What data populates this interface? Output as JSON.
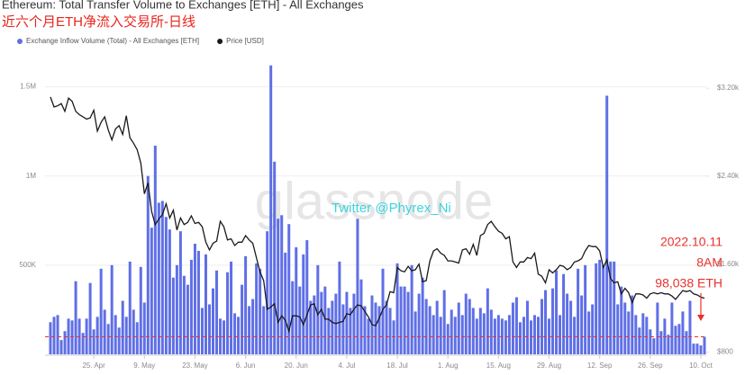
{
  "chart_data": {
    "type": "bar",
    "title": "Ethereum: Total Transfer Volume to Exchanges [ETH] - All Exchanges",
    "subtitle": "近六个月ETH净流入交易所-日线",
    "watermark": "glassnode",
    "credit": "Twitter @Phyrex_Ni",
    "annotations": [
      "2022.10.11",
      "8AM",
      "98,038 ETH"
    ],
    "reference_line": {
      "value": 98038,
      "color": "#e8322e"
    },
    "categories": [
      null,
      null,
      null,
      null,
      null,
      null,
      null,
      null,
      null,
      null,
      null,
      null,
      "25. Apr",
      null,
      null,
      null,
      null,
      null,
      null,
      null,
      null,
      null,
      null,
      null,
      null,
      null,
      "9. May",
      null,
      null,
      null,
      null,
      null,
      null,
      null,
      null,
      null,
      null,
      null,
      null,
      null,
      "23. May",
      null,
      null,
      null,
      null,
      null,
      null,
      null,
      null,
      null,
      null,
      null,
      null,
      null,
      "6. Jun",
      null,
      null,
      null,
      null,
      null,
      null,
      null,
      null,
      null,
      null,
      null,
      null,
      null,
      "20. Jun",
      null,
      null,
      null,
      null,
      null,
      null,
      null,
      null,
      null,
      null,
      null,
      null,
      null,
      "4. Jul",
      null,
      null,
      null,
      null,
      null,
      null,
      null,
      null,
      null,
      null,
      null,
      null,
      null,
      "18. Jul",
      null,
      null,
      null,
      null,
      null,
      null,
      null,
      null,
      null,
      null,
      null,
      null,
      null,
      "1. Aug",
      null,
      null,
      null,
      null,
      null,
      null,
      null,
      null,
      null,
      null,
      null,
      null,
      null,
      "15. Aug",
      null,
      null,
      null,
      null,
      null,
      null,
      null,
      null,
      null,
      null,
      null,
      null,
      null,
      "29. Aug",
      null,
      null,
      null,
      null,
      null,
      null,
      null,
      null,
      null,
      null,
      null,
      null,
      null,
      "12. Sep",
      null,
      null,
      null,
      null,
      null,
      null,
      null,
      null,
      null,
      null,
      null,
      null,
      null,
      "26. Sep",
      null,
      null,
      null,
      null,
      null,
      null,
      null,
      null,
      null,
      null,
      null,
      null,
      null,
      "10. Oct",
      null
    ],
    "series": [
      {
        "name": "Exchange Inflow Volume (Total) - All Exchanges [ETH]",
        "color": "#5f6fe6",
        "type": "bar",
        "values": [
          180000,
          210000,
          220000,
          80000,
          130000,
          200000,
          190000,
          410000,
          200000,
          120000,
          200000,
          400000,
          140000,
          210000,
          480000,
          250000,
          170000,
          500000,
          220000,
          150000,
          300000,
          210000,
          520000,
          250000,
          180000,
          490000,
          290000,
          1000000,
          710000,
          1170000,
          850000,
          860000,
          770000,
          700000,
          430000,
          500000,
          690000,
          440000,
          390000,
          530000,
          620000,
          580000,
          260000,
          560000,
          280000,
          370000,
          470000,
          200000,
          190000,
          460000,
          520000,
          230000,
          210000,
          390000,
          550000,
          270000,
          310000,
          510000,
          480000,
          270000,
          690000,
          1620000,
          1080000,
          760000,
          780000,
          570000,
          730000,
          410000,
          600000,
          380000,
          560000,
          640000,
          300000,
          330000,
          500000,
          350000,
          380000,
          260000,
          300000,
          340000,
          520000,
          280000,
          350000,
          260000,
          340000,
          760000,
          420000,
          270000,
          200000,
          330000,
          290000,
          270000,
          480000,
          300000,
          260000,
          190000,
          510000,
          380000,
          380000,
          350000,
          500000,
          240000,
          340000,
          430000,
          310000,
          270000,
          220000,
          300000,
          210000,
          360000,
          170000,
          250000,
          210000,
          290000,
          220000,
          340000,
          310000,
          260000,
          200000,
          260000,
          230000,
          370000,
          250000,
          200000,
          220000,
          200000,
          190000,
          220000,
          290000,
          320000,
          180000,
          210000,
          300000,
          190000,
          220000,
          210000,
          310000,
          360000,
          200000,
          370000,
          470000,
          220000,
          450000,
          340000,
          300000,
          210000,
          480000,
          330000,
          500000,
          240000,
          280000,
          510000,
          530000,
          500000,
          1450000,
          520000,
          520000,
          280000,
          380000,
          290000,
          240000,
          330000,
          220000,
          150000,
          230000,
          210000,
          140000,
          90000,
          290000,
          130000,
          200000,
          110000,
          290000,
          160000,
          170000,
          240000,
          130000,
          300000,
          60000,
          60000,
          50000,
          98038
        ]
      },
      {
        "name": "Price [USD]",
        "color": "#1a1a1a",
        "type": "line",
        "axis": "y2",
        "values": [
          3120,
          3030,
          3040,
          3060,
          2990,
          3110,
          3080,
          2990,
          2960,
          2940,
          2920,
          2930,
          3000,
          2810,
          2890,
          2940,
          2820,
          2730,
          2830,
          2860,
          2780,
          2950,
          2750,
          2700,
          2640,
          2520,
          2240,
          2340,
          2080,
          1960,
          2010,
          2050,
          2150,
          2020,
          2090,
          1910,
          2020,
          1960,
          1980,
          2040,
          1970,
          1980,
          1940,
          1800,
          1730,
          1790,
          1810,
          1990,
          1940,
          1820,
          1830,
          1770,
          1800,
          1800,
          1860,
          1820,
          1790,
          1660,
          1530,
          1450,
          1190,
          1210,
          1240,
          1070,
          1130,
          1090,
          990,
          1130,
          1130,
          1120,
          1050,
          1140,
          1230,
          1240,
          1140,
          1190,
          1100,
          1100,
          1070,
          1060,
          1070,
          1080,
          1150,
          1140,
          1190,
          1230,
          1220,
          1170,
          1120,
          1050,
          1040,
          1110,
          1190,
          1230,
          1350,
          1340,
          1570,
          1540,
          1530,
          1580,
          1540,
          1550,
          1600,
          1440,
          1450,
          1630,
          1720,
          1740,
          1700,
          1680,
          1630,
          1630,
          1620,
          1610,
          1730,
          1740,
          1690,
          1780,
          1680,
          1860,
          1880,
          1960,
          1990,
          1940,
          1900,
          1880,
          1830,
          1850,
          1620,
          1570,
          1620,
          1620,
          1660,
          1650,
          1700,
          1510,
          1490,
          1430,
          1550,
          1520,
          1550,
          1590,
          1580,
          1550,
          1570,
          1620,
          1630,
          1650,
          1720,
          1770,
          1760,
          1760,
          1720,
          1570,
          1640,
          1470,
          1430,
          1440,
          1330,
          1380,
          1340,
          1250,
          1330,
          1330,
          1320,
          1290,
          1330,
          1340,
          1330,
          1340,
          1330,
          1330,
          1310,
          1280,
          1320,
          1360,
          1350,
          1360,
          1330,
          1320,
          1300,
          1290
        ]
      }
    ],
    "ylim": [
      0,
      1800000
    ],
    "yticks": [
      {
        "value": 500000,
        "label": "500K"
      },
      {
        "value": 1000000,
        "label": "1M"
      },
      {
        "value": 1500000,
        "label": "1.5M"
      }
    ],
    "y2lim": [
      780,
      3700
    ],
    "y2ticks": [
      {
        "value": 800,
        "label": "$800"
      },
      {
        "value": 1600,
        "label": "$1.60k"
      },
      {
        "value": 2400,
        "label": "$2.40k"
      },
      {
        "value": 3200,
        "label": "$3.20k"
      }
    ],
    "grid": true
  }
}
